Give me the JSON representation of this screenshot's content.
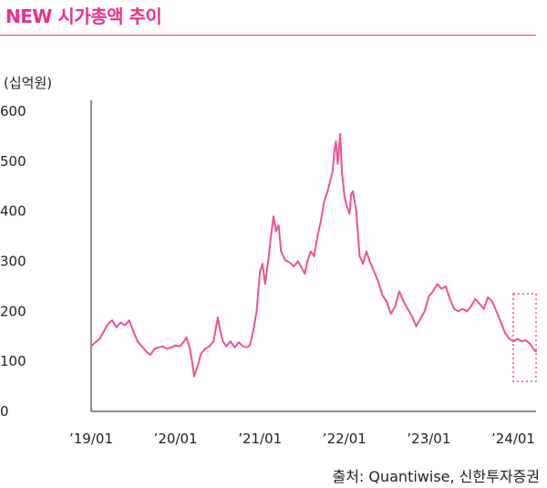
{
  "header": {
    "title": "NEW 시가총액 추이"
  },
  "chart_data": {
    "type": "line",
    "unit_label": "(십억원)",
    "ylim": [
      0,
      600
    ],
    "y_ticks": [
      0,
      100,
      200,
      300,
      400,
      500,
      600
    ],
    "x_tick_labels": [
      "’19/01",
      "’20/01",
      "’21/01",
      "’22/01",
      "’23/01",
      "’24/01"
    ],
    "x_tick_positions": [
      2019.0,
      2020.0,
      2021.0,
      2022.0,
      2023.0,
      2024.0
    ],
    "xlim": [
      2019.0,
      2024.27
    ],
    "grid": false,
    "highlight_box": {
      "x_range": [
        2024.0,
        2024.27
      ],
      "y_range": [
        60,
        235
      ]
    },
    "series": [
      {
        "color": "#f0509a",
        "points": [
          [
            2019.0,
            130
          ],
          [
            2019.05,
            138
          ],
          [
            2019.1,
            145
          ],
          [
            2019.15,
            160
          ],
          [
            2019.2,
            175
          ],
          [
            2019.25,
            182
          ],
          [
            2019.3,
            168
          ],
          [
            2019.35,
            178
          ],
          [
            2019.4,
            172
          ],
          [
            2019.45,
            182
          ],
          [
            2019.5,
            160
          ],
          [
            2019.55,
            140
          ],
          [
            2019.6,
            130
          ],
          [
            2019.65,
            120
          ],
          [
            2019.7,
            113
          ],
          [
            2019.75,
            125
          ],
          [
            2019.8,
            128
          ],
          [
            2019.85,
            130
          ],
          [
            2019.9,
            125
          ],
          [
            2019.95,
            128
          ],
          [
            2020.0,
            132
          ],
          [
            2020.05,
            130
          ],
          [
            2020.1,
            140
          ],
          [
            2020.13,
            148
          ],
          [
            2020.17,
            125
          ],
          [
            2020.2,
            95
          ],
          [
            2020.22,
            70
          ],
          [
            2020.26,
            90
          ],
          [
            2020.3,
            115
          ],
          [
            2020.35,
            125
          ],
          [
            2020.4,
            130
          ],
          [
            2020.45,
            140
          ],
          [
            2020.5,
            188
          ],
          [
            2020.53,
            160
          ],
          [
            2020.56,
            140
          ],
          [
            2020.6,
            130
          ],
          [
            2020.65,
            140
          ],
          [
            2020.7,
            128
          ],
          [
            2020.75,
            138
          ],
          [
            2020.8,
            130
          ],
          [
            2020.85,
            128
          ],
          [
            2020.88,
            133
          ],
          [
            2020.92,
            160
          ],
          [
            2020.96,
            200
          ],
          [
            2021.0,
            280
          ],
          [
            2021.03,
            295
          ],
          [
            2021.06,
            255
          ],
          [
            2021.1,
            305
          ],
          [
            2021.13,
            350
          ],
          [
            2021.16,
            390
          ],
          [
            2021.19,
            360
          ],
          [
            2021.22,
            372
          ],
          [
            2021.25,
            320
          ],
          [
            2021.3,
            302
          ],
          [
            2021.35,
            298
          ],
          [
            2021.4,
            290
          ],
          [
            2021.45,
            300
          ],
          [
            2021.5,
            285
          ],
          [
            2021.53,
            275
          ],
          [
            2021.56,
            300
          ],
          [
            2021.6,
            320
          ],
          [
            2021.64,
            310
          ],
          [
            2021.68,
            350
          ],
          [
            2021.72,
            380
          ],
          [
            2021.76,
            420
          ],
          [
            2021.8,
            440
          ],
          [
            2021.83,
            460
          ],
          [
            2021.86,
            480
          ],
          [
            2021.88,
            520
          ],
          [
            2021.9,
            540
          ],
          [
            2021.92,
            495
          ],
          [
            2021.95,
            555
          ],
          [
            2021.97,
            480
          ],
          [
            2022.0,
            430
          ],
          [
            2022.03,
            410
          ],
          [
            2022.06,
            395
          ],
          [
            2022.08,
            435
          ],
          [
            2022.1,
            440
          ],
          [
            2022.14,
            400
          ],
          [
            2022.18,
            310
          ],
          [
            2022.22,
            295
          ],
          [
            2022.26,
            320
          ],
          [
            2022.3,
            300
          ],
          [
            2022.35,
            280
          ],
          [
            2022.4,
            260
          ],
          [
            2022.45,
            232
          ],
          [
            2022.5,
            220
          ],
          [
            2022.55,
            195
          ],
          [
            2022.6,
            210
          ],
          [
            2022.65,
            240
          ],
          [
            2022.7,
            220
          ],
          [
            2022.75,
            205
          ],
          [
            2022.8,
            190
          ],
          [
            2022.85,
            170
          ],
          [
            2022.9,
            185
          ],
          [
            2022.95,
            200
          ],
          [
            2023.0,
            230
          ],
          [
            2023.05,
            240
          ],
          [
            2023.1,
            255
          ],
          [
            2023.15,
            245
          ],
          [
            2023.2,
            250
          ],
          [
            2023.25,
            225
          ],
          [
            2023.3,
            205
          ],
          [
            2023.35,
            200
          ],
          [
            2023.4,
            205
          ],
          [
            2023.45,
            200
          ],
          [
            2023.5,
            210
          ],
          [
            2023.55,
            225
          ],
          [
            2023.6,
            215
          ],
          [
            2023.65,
            205
          ],
          [
            2023.7,
            228
          ],
          [
            2023.75,
            220
          ],
          [
            2023.8,
            200
          ],
          [
            2023.85,
            180
          ],
          [
            2023.9,
            158
          ],
          [
            2023.95,
            145
          ],
          [
            2024.0,
            140
          ],
          [
            2024.05,
            145
          ],
          [
            2024.1,
            140
          ],
          [
            2024.15,
            142
          ],
          [
            2024.2,
            135
          ],
          [
            2024.25,
            122
          ],
          [
            2024.27,
            120
          ]
        ]
      }
    ]
  },
  "source": "출처: Quantiwise, 신한투자증권"
}
